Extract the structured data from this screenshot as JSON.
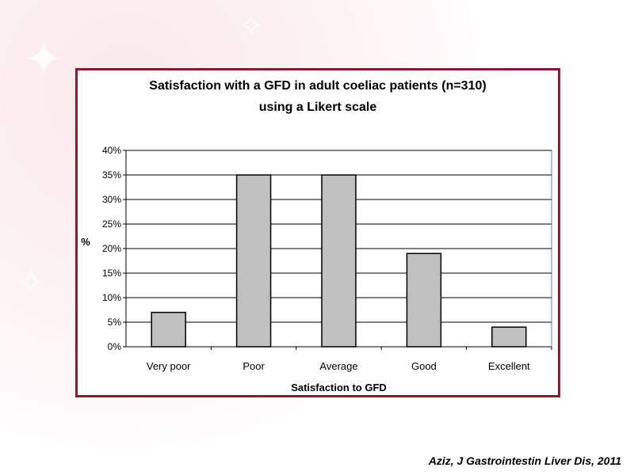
{
  "chart_data": {
    "type": "bar",
    "title_lines": [
      "Satisfaction with a GFD in adult coeliac patients (n=310)",
      "using a Likert scale"
    ],
    "xlabel": "Satisfaction to GFD",
    "ylabel": "%",
    "categories": [
      "Very poor",
      "Poor",
      "Average",
      "Good",
      "Excellent"
    ],
    "values": [
      7,
      35,
      35,
      19,
      4
    ],
    "ylim": [
      0,
      40
    ],
    "yticks": [
      "0%",
      "5%",
      "10%",
      "15%",
      "20%",
      "25%",
      "30%",
      "35%",
      "40%"
    ],
    "grid": true,
    "legend": "none",
    "bar_color": "#c0c0c0",
    "frame_color": "#8b1a2b"
  },
  "citation": "Aziz, J Gastrointestin Liver Dis, 2011"
}
